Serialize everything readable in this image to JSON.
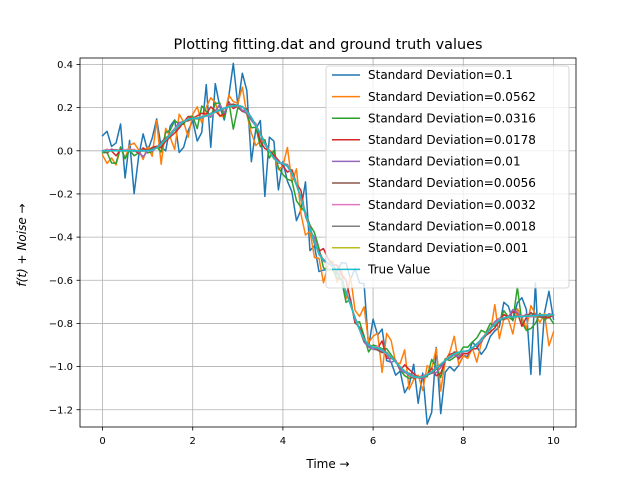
{
  "chart_data": {
    "type": "line",
    "title": "Plotting fitting.dat and ground truth values",
    "xlabel": "Time  →",
    "ylabel": "f(t) + Noise →",
    "xlim": [
      -0.5,
      10.5
    ],
    "ylim": [
      -1.28,
      0.43
    ],
    "xticks": [
      0,
      2,
      4,
      6,
      8,
      10
    ],
    "xtick_labels": [
      "0",
      "2",
      "4",
      "6",
      "8",
      "10"
    ],
    "yticks": [
      -1.2,
      -1.0,
      -0.8,
      -0.6,
      -0.4,
      -0.2,
      0.0,
      0.2,
      0.4
    ],
    "ytick_labels": [
      "−1.2",
      "−1.0",
      "−0.8",
      "−0.6",
      "−0.4",
      "−0.2",
      "0.0",
      "0.2",
      "0.4"
    ],
    "grid": true,
    "legend_position": "top-right",
    "x": [
      0,
      1,
      2,
      3,
      4,
      5,
      6,
      7,
      8,
      9,
      10
    ],
    "series": [
      {
        "name": "Standard Deviation=0.1",
        "color": "#1f77b4",
        "noise_sd": 0.1,
        "values": [
          0.07,
          0.0,
          0.14,
          0.21,
          -0.05,
          -0.55,
          -0.78,
          -1.17,
          -0.95,
          -0.72,
          -0.78
        ]
      },
      {
        "name": "Standard Deviation=0.0562",
        "color": "#ff7f0e",
        "noise_sd": 0.0562,
        "values": [
          -0.02,
          0.02,
          0.17,
          0.22,
          -0.07,
          -0.53,
          -0.86,
          -1.04,
          -0.95,
          -0.78,
          -0.84
        ]
      },
      {
        "name": "Standard Deviation=0.0316",
        "color": "#2ca02c",
        "noise_sd": 0.0316,
        "values": [
          -0.01,
          -0.01,
          0.16,
          0.2,
          -0.11,
          -0.55,
          -0.9,
          -1.05,
          -0.91,
          -0.77,
          -0.8
        ]
      },
      {
        "name": "Standard Deviation=0.0178",
        "color": "#d62728",
        "noise_sd": 0.0178,
        "values": [
          0.0,
          0.0,
          0.15,
          0.21,
          -0.07,
          -0.5,
          -0.91,
          -1.05,
          -0.94,
          -0.77,
          -0.76
        ]
      },
      {
        "name": "Standard Deviation=0.01",
        "color": "#9467bd",
        "noise_sd": 0.01,
        "values": [
          0.0,
          0.0,
          0.15,
          0.21,
          -0.06,
          -0.52,
          -0.92,
          -1.05,
          -0.93,
          -0.77,
          -0.76
        ]
      },
      {
        "name": "Standard Deviation=0.0056",
        "color": "#8c564b",
        "noise_sd": 0.0056,
        "values": [
          0.0,
          0.0,
          0.15,
          0.21,
          -0.06,
          -0.52,
          -0.91,
          -1.05,
          -0.93,
          -0.77,
          -0.76
        ]
      },
      {
        "name": "Standard Deviation=0.0032",
        "color": "#e377c2",
        "noise_sd": 0.0032,
        "values": [
          0.0,
          0.0,
          0.15,
          0.21,
          -0.06,
          -0.52,
          -0.91,
          -1.05,
          -0.93,
          -0.77,
          -0.76
        ]
      },
      {
        "name": "Standard Deviation=0.0018",
        "color": "#7f7f7f",
        "noise_sd": 0.0018,
        "values": [
          0.0,
          0.0,
          0.15,
          0.21,
          -0.06,
          -0.52,
          -0.91,
          -1.05,
          -0.93,
          -0.77,
          -0.76
        ]
      },
      {
        "name": "Standard Deviation=0.001",
        "color": "#bcbd22",
        "noise_sd": 0.001,
        "values": [
          0.0,
          0.0,
          0.15,
          0.21,
          -0.06,
          -0.52,
          -0.91,
          -1.05,
          -0.93,
          -0.77,
          -0.76
        ]
      },
      {
        "name": "True Value",
        "color": "#17becf",
        "noise_sd": 0,
        "values": [
          0.0,
          0.0,
          0.15,
          0.21,
          -0.06,
          -0.52,
          -0.91,
          -1.05,
          -0.93,
          -0.77,
          -0.76
        ]
      }
    ]
  }
}
